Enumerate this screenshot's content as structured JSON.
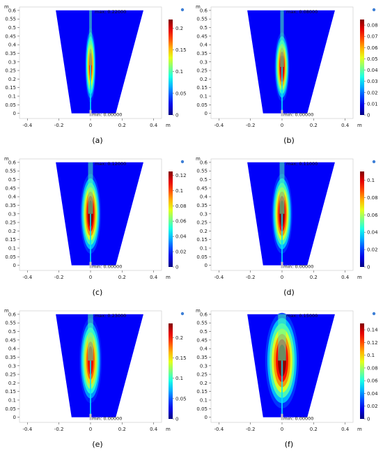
{
  "figure": {
    "panels": [
      {
        "id": "a",
        "label": "(a)",
        "max_label": "max: 0.22000",
        "min_label": "min: 0.00000",
        "cbar_ticks": [
          0,
          0.05,
          0.1,
          0.15,
          0.2
        ],
        "cbar_max": 0.22,
        "peak": {
          "y": 0.28,
          "width": 0.012,
          "length": 0.14,
          "amp": 0.85
        }
      },
      {
        "id": "b",
        "label": "(b)",
        "max_label": "max: 0.08000",
        "min_label": "min: 0.00000",
        "cbar_ticks": [
          0,
          0.01,
          0.02,
          0.03,
          0.04,
          0.05,
          0.06,
          0.07,
          0.08
        ],
        "cbar_max": 0.085,
        "peak": {
          "y": 0.27,
          "width": 0.016,
          "length": 0.13,
          "amp": 0.95
        }
      },
      {
        "id": "c",
        "label": "(c)",
        "max_label": "max: 0.12000",
        "min_label": "min: 0.00000",
        "cbar_ticks": [
          0,
          0.02,
          0.04,
          0.06,
          0.08,
          0.1,
          0.12
        ],
        "cbar_max": 0.125,
        "peak": {
          "y": 0.3,
          "width": 0.022,
          "length": 0.15,
          "amp": 1.0
        }
      },
      {
        "id": "d",
        "label": "(d)",
        "max_label": "max: 0.11000",
        "min_label": "min: 0.00000",
        "cbar_ticks": [
          0,
          0.02,
          0.04,
          0.06,
          0.08,
          0.1
        ],
        "cbar_max": 0.11,
        "peak": {
          "y": 0.3,
          "width": 0.022,
          "length": 0.15,
          "amp": 1.0
        }
      },
      {
        "id": "e",
        "label": "(e)",
        "max_label": "max: 0.23000",
        "min_label": "min: 0.00000",
        "cbar_ticks": [
          0,
          0.05,
          0.1,
          0.15,
          0.2
        ],
        "cbar_max": 0.235,
        "peak": {
          "y": 0.33,
          "width": 0.024,
          "length": 0.16,
          "amp": 0.9
        }
      },
      {
        "id": "f",
        "label": "(f)",
        "max_label": "max: 0.15000",
        "min_label": "min: 0.00000",
        "cbar_ticks": [
          0,
          0.02,
          0.04,
          0.06,
          0.08,
          0.1,
          0.12,
          0.14
        ],
        "cbar_max": 0.15,
        "peak": {
          "y": 0.33,
          "width": 0.036,
          "length": 0.18,
          "amp": 1.0
        }
      }
    ]
  },
  "chart_data": [
    {
      "type": "heatmap",
      "panel": "(a)",
      "xlabel": "m",
      "ylabel": "m",
      "x_ticks": [
        -0.4,
        -0.2,
        0,
        0.2,
        0.4
      ],
      "y_ticks": [
        0,
        0.05,
        0.1,
        0.15,
        0.2,
        0.25,
        0.3,
        0.35,
        0.4,
        0.45,
        0.5,
        0.55,
        0.6
      ],
      "xlim": [
        -0.45,
        0.45
      ],
      "ylim": [
        -0.03,
        0.62
      ],
      "colorbar_ticks": [
        0,
        0.05,
        0.1,
        0.15,
        0.2
      ],
      "colorbar_range": [
        0,
        0.22
      ],
      "max": "max: 0.22000",
      "min": "min: 0.00000"
    },
    {
      "type": "heatmap",
      "panel": "(b)",
      "xlabel": "m",
      "ylabel": "m",
      "x_ticks": [
        -0.4,
        -0.2,
        0,
        0.2,
        0.4
      ],
      "y_ticks": [
        0,
        0.05,
        0.1,
        0.15,
        0.2,
        0.25,
        0.3,
        0.35,
        0.4,
        0.45,
        0.5,
        0.55,
        0.6
      ],
      "xlim": [
        -0.45,
        0.45
      ],
      "ylim": [
        -0.03,
        0.62
      ],
      "colorbar_ticks": [
        0,
        0.01,
        0.02,
        0.03,
        0.04,
        0.05,
        0.06,
        0.07,
        0.08
      ],
      "colorbar_range": [
        0,
        0.085
      ],
      "max": "max: 0.08000",
      "min": "min: 0.00000"
    },
    {
      "type": "heatmap",
      "panel": "(c)",
      "xlabel": "m",
      "ylabel": "m",
      "x_ticks": [
        -0.4,
        -0.2,
        0,
        0.2,
        0.4
      ],
      "y_ticks": [
        0,
        0.05,
        0.1,
        0.15,
        0.2,
        0.25,
        0.3,
        0.35,
        0.4,
        0.45,
        0.5,
        0.55,
        0.6
      ],
      "xlim": [
        -0.45,
        0.45
      ],
      "ylim": [
        -0.03,
        0.62
      ],
      "colorbar_ticks": [
        0,
        0.02,
        0.04,
        0.06,
        0.08,
        0.1,
        0.12
      ],
      "colorbar_range": [
        0,
        0.125
      ],
      "max": "max: 0.12000",
      "min": "min: 0.00000"
    },
    {
      "type": "heatmap",
      "panel": "(d)",
      "xlabel": "m",
      "ylabel": "m",
      "x_ticks": [
        -0.4,
        -0.2,
        0,
        0.2,
        0.4
      ],
      "y_ticks": [
        0,
        0.05,
        0.1,
        0.15,
        0.2,
        0.25,
        0.3,
        0.35,
        0.4,
        0.45,
        0.5,
        0.55,
        0.6
      ],
      "xlim": [
        -0.45,
        0.45
      ],
      "ylim": [
        -0.03,
        0.62
      ],
      "colorbar_ticks": [
        0,
        0.02,
        0.04,
        0.06,
        0.08,
        0.1
      ],
      "colorbar_range": [
        0,
        0.11
      ],
      "max": "max: 0.11000",
      "min": "min: 0.00000"
    },
    {
      "type": "heatmap",
      "panel": "(e)",
      "xlabel": "m",
      "ylabel": "m",
      "x_ticks": [
        -0.4,
        -0.2,
        0,
        0.2,
        0.4
      ],
      "y_ticks": [
        0,
        0.05,
        0.1,
        0.15,
        0.2,
        0.25,
        0.3,
        0.35,
        0.4,
        0.45,
        0.5,
        0.55,
        0.6
      ],
      "xlim": [
        -0.45,
        0.45
      ],
      "ylim": [
        -0.03,
        0.62
      ],
      "colorbar_ticks": [
        0,
        0.05,
        0.1,
        0.15,
        0.2
      ],
      "colorbar_range": [
        0,
        0.235
      ],
      "max": "max: 0.23000",
      "min": "min: 0.00000"
    },
    {
      "type": "heatmap",
      "panel": "(f)",
      "xlabel": "m",
      "ylabel": "m",
      "x_ticks": [
        -0.4,
        -0.2,
        0,
        0.2,
        0.4
      ],
      "y_ticks": [
        0,
        0.05,
        0.1,
        0.15,
        0.2,
        0.25,
        0.3,
        0.35,
        0.4,
        0.45,
        0.5,
        0.55,
        0.6
      ],
      "xlim": [
        -0.45,
        0.45
      ],
      "ylim": [
        -0.03,
        0.62
      ],
      "colorbar_ticks": [
        0,
        0.02,
        0.04,
        0.06,
        0.08,
        0.1,
        0.12,
        0.14
      ],
      "colorbar_range": [
        0,
        0.15
      ],
      "max": "max: 0.15000",
      "min": "min: 0.00000"
    }
  ],
  "colors": {
    "field_low": "#00008f",
    "field_high": "#800000",
    "axis": "#444444"
  }
}
